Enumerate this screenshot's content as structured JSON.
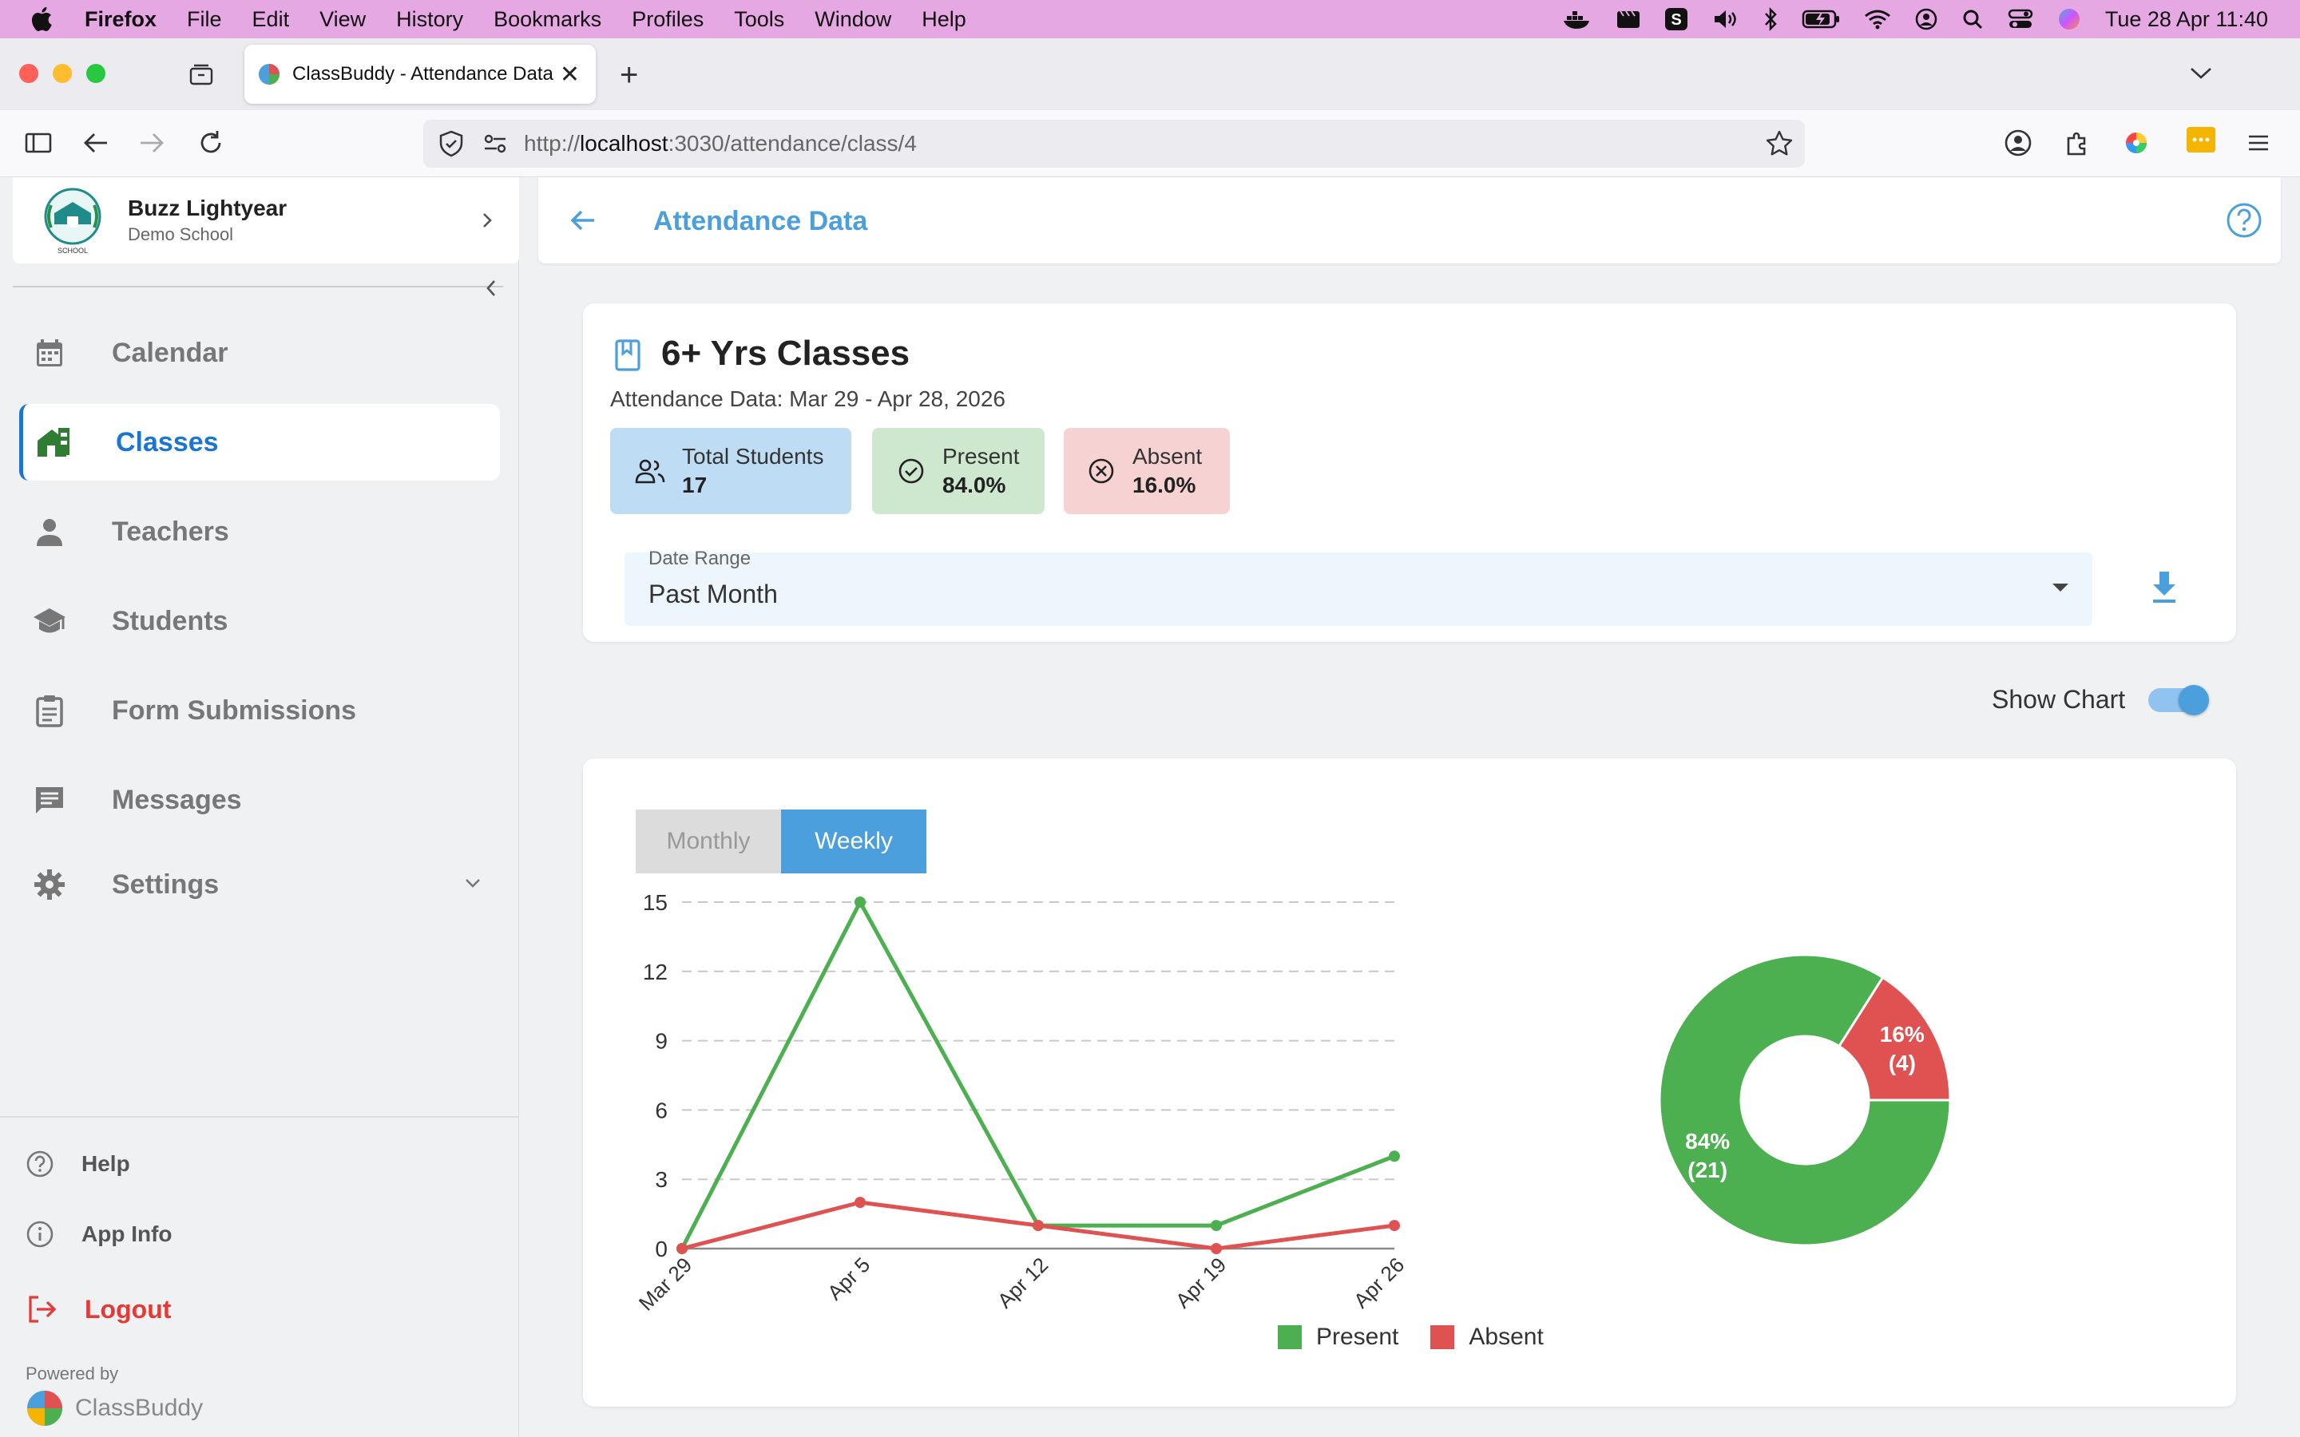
{
  "menubar": {
    "app": "Firefox",
    "items": [
      "File",
      "Edit",
      "View",
      "History",
      "Bookmarks",
      "Profiles",
      "Tools",
      "Window",
      "Help"
    ],
    "clock": "Tue 28 Apr  11:40"
  },
  "browser": {
    "tab_title": "ClassBuddy - Attendance Data",
    "url_prefix": "http://",
    "url_host": "localhost",
    "url_rest": ":3030/attendance/class/4"
  },
  "sidebar": {
    "user_name": "Buzz Lightyear",
    "school": "Demo School",
    "logo_caption": "SCHOOL",
    "items": [
      {
        "label": "Calendar",
        "icon": "calendar-icon"
      },
      {
        "label": "Classes",
        "icon": "home-icon",
        "active": true
      },
      {
        "label": "Teachers",
        "icon": "person-icon"
      },
      {
        "label": "Students",
        "icon": "graduation-cap-icon"
      },
      {
        "label": "Form Submissions",
        "icon": "clipboard-icon"
      },
      {
        "label": "Messages",
        "icon": "chat-icon"
      },
      {
        "label": "Settings",
        "icon": "gear-icon"
      }
    ],
    "help": "Help",
    "app_info": "App Info",
    "logout": "Logout",
    "powered_by": "Powered by",
    "brand": "ClassBuddy"
  },
  "header": {
    "title": "Attendance Data"
  },
  "info": {
    "class_title": "6+ Yrs Classes",
    "subtitle": "Attendance Data: Mar 29 - Apr 28, 2026",
    "total_label": "Total Students",
    "total_value": "17",
    "present_label": "Present",
    "present_value": "84.0%",
    "absent_label": "Absent",
    "absent_value": "16.0%",
    "date_range_label": "Date Range",
    "date_range_value": "Past Month"
  },
  "toggle": {
    "label": "Show Chart",
    "on": true
  },
  "chart_tabs": {
    "monthly": "Monthly",
    "weekly": "Weekly",
    "selected": "Weekly"
  },
  "colors": {
    "accent": "#4b9fdc",
    "present": "#4caf50",
    "absent": "#e05252",
    "logout": "#e53935"
  },
  "chart_data": [
    {
      "type": "line",
      "categories": [
        "Mar 29",
        "Apr 5",
        "Apr 12",
        "Apr 19",
        "Apr 26"
      ],
      "series": [
        {
          "name": "Present",
          "values": [
            0,
            15,
            1,
            1,
            4
          ],
          "color": "#4caf50"
        },
        {
          "name": "Absent",
          "values": [
            0,
            2,
            1,
            0,
            1
          ],
          "color": "#e05252"
        }
      ],
      "y_ticks": [
        0,
        3,
        6,
        9,
        12,
        15
      ],
      "ylim": [
        0,
        15
      ],
      "grid": "horizontal dashed",
      "legend": "bottom"
    },
    {
      "type": "pie",
      "donut": true,
      "slices": [
        {
          "label": "84%",
          "count": "(21)",
          "value": 21,
          "color": "#4caf50"
        },
        {
          "label": "16%",
          "count": "(4)",
          "value": 4,
          "color": "#e05252"
        }
      ]
    }
  ]
}
